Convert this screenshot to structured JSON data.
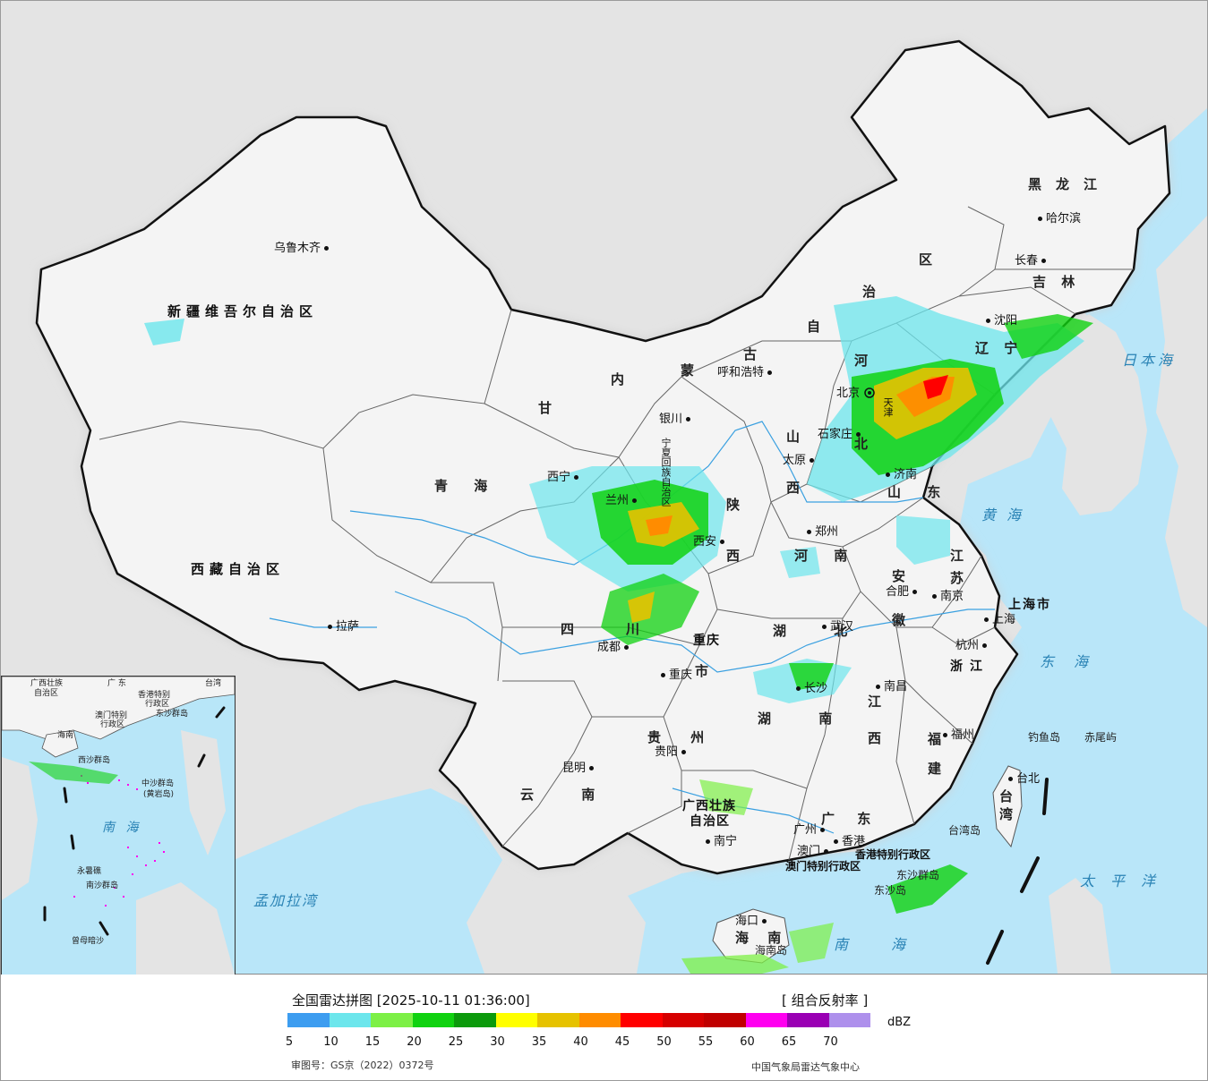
{
  "map": {
    "provinces": [
      {
        "id": "xinjiang",
        "label": "新疆维吾尔自治区",
        "cls": "prov-tight"
      },
      {
        "id": "xizang",
        "label": "西藏自治区",
        "cls": "prov-tight"
      },
      {
        "id": "qinghai",
        "label": "青 海",
        "cls": "prov"
      },
      {
        "id": "gansu",
        "label": "甘",
        "cls": "prov"
      },
      {
        "id": "neimenggu-nei",
        "label": "内",
        "cls": "prov"
      },
      {
        "id": "neimenggu-meng",
        "label": "蒙",
        "cls": "prov"
      },
      {
        "id": "neimenggu-gu",
        "label": "古",
        "cls": "prov"
      },
      {
        "id": "neimenggu-zi",
        "label": "自",
        "cls": "prov"
      },
      {
        "id": "neimenggu-zhi",
        "label": "治",
        "cls": "prov"
      },
      {
        "id": "neimenggu-qu",
        "label": "区",
        "cls": "prov"
      },
      {
        "id": "heilongjiang",
        "label": "黑龙江",
        "cls": "prov"
      },
      {
        "id": "jilin",
        "label": "吉 林",
        "cls": "prov"
      },
      {
        "id": "liaoning",
        "label": "辽 宁",
        "cls": "prov"
      },
      {
        "id": "hebei-he",
        "label": "河",
        "cls": "prov"
      },
      {
        "id": "hebei-bei",
        "label": "北",
        "cls": "prov"
      },
      {
        "id": "shanxi-shan",
        "label": "山",
        "cls": "prov"
      },
      {
        "id": "shanxi-xi",
        "label": "西",
        "cls": "prov"
      },
      {
        "id": "shaanxi-shan",
        "label": "陕",
        "cls": "prov"
      },
      {
        "id": "shaanxi-xi",
        "label": "西",
        "cls": "prov"
      },
      {
        "id": "shandong",
        "label": "山 东",
        "cls": "prov"
      },
      {
        "id": "henan",
        "label": "河 南",
        "cls": "prov"
      },
      {
        "id": "jiangsu-jiang",
        "label": "江",
        "cls": "prov"
      },
      {
        "id": "jiangsu-su",
        "label": "苏",
        "cls": "prov"
      },
      {
        "id": "anhui-an",
        "label": "安",
        "cls": "prov"
      },
      {
        "id": "anhui-hui",
        "label": "徽",
        "cls": "prov"
      },
      {
        "id": "shanghai",
        "label": "上海市",
        "cls": "prov-tight"
      },
      {
        "id": "zhejiang",
        "label": "浙江",
        "cls": "prov-tight"
      },
      {
        "id": "sichuan-si",
        "label": "四",
        "cls": "prov"
      },
      {
        "id": "sichuan-chuan",
        "label": "川",
        "cls": "prov"
      },
      {
        "id": "chongqing-a",
        "label": "重庆",
        "cls": "prov-tight"
      },
      {
        "id": "chongqing-b",
        "label": "市",
        "cls": "prov"
      },
      {
        "id": "hubei",
        "label": "湖 北",
        "cls": "prov"
      },
      {
        "id": "hunan",
        "label": "湖 南",
        "cls": "prov"
      },
      {
        "id": "jiangxi-jiang",
        "label": "江",
        "cls": "prov"
      },
      {
        "id": "jiangxi-xi",
        "label": "西",
        "cls": "prov"
      },
      {
        "id": "fujian-fu",
        "label": "福",
        "cls": "prov"
      },
      {
        "id": "fujian-jian",
        "label": "建",
        "cls": "prov"
      },
      {
        "id": "guizhou",
        "label": "贵 州",
        "cls": "prov"
      },
      {
        "id": "yunnan",
        "label": "云 南",
        "cls": "prov"
      },
      {
        "id": "guangxi-a",
        "label": "广西壮族",
        "cls": "prov-tight"
      },
      {
        "id": "guangxi-b",
        "label": "自治区",
        "cls": "prov-tight"
      },
      {
        "id": "guangdong",
        "label": "广 东",
        "cls": "prov"
      },
      {
        "id": "hainan",
        "label": "海 南",
        "cls": "prov"
      },
      {
        "id": "taiwan-a",
        "label": "台",
        "cls": "prov"
      },
      {
        "id": "taiwan-b",
        "label": "湾",
        "cls": "prov"
      },
      {
        "id": "ningxia",
        "label": "宁夏回族自治区",
        "cls": "prov-tight"
      },
      {
        "id": "tianjin",
        "label": "天津",
        "cls": "prov-tight"
      },
      {
        "id": "hk-sar",
        "label": "香港特别行政区",
        "cls": "prov-tight"
      },
      {
        "id": "macao-sar",
        "label": "澳门特别行政区",
        "cls": "prov-tight"
      }
    ],
    "cities": [
      {
        "id": "urumqi",
        "label": "乌鲁木齐",
        "side": "r"
      },
      {
        "id": "lhasa",
        "label": "拉萨",
        "side": "l"
      },
      {
        "id": "xining",
        "label": "西宁",
        "side": "r"
      },
      {
        "id": "lanzhou",
        "label": "兰州",
        "side": "r"
      },
      {
        "id": "yinchuan",
        "label": "银川",
        "side": "r"
      },
      {
        "id": "hohhot",
        "label": "呼和浩特",
        "side": "r"
      },
      {
        "id": "beijing",
        "label": "北京",
        "side": "r"
      },
      {
        "id": "shijiazhuang",
        "label": "石家庄",
        "side": "r"
      },
      {
        "id": "taiyuan",
        "label": "太原",
        "side": "r"
      },
      {
        "id": "xian",
        "label": "西安",
        "side": "r"
      },
      {
        "id": "zhengzhou",
        "label": "郑州",
        "side": "l"
      },
      {
        "id": "jinan",
        "label": "济南",
        "side": "l"
      },
      {
        "id": "shenyang",
        "label": "沈阳",
        "side": "l"
      },
      {
        "id": "changchun",
        "label": "长春",
        "side": "r"
      },
      {
        "id": "harbin",
        "label": "哈尔滨",
        "side": "l"
      },
      {
        "id": "hefei",
        "label": "合肥",
        "side": "r"
      },
      {
        "id": "nanjing",
        "label": "南京",
        "side": "l"
      },
      {
        "id": "shanghai-c",
        "label": "上海",
        "side": "l"
      },
      {
        "id": "hangzhou",
        "label": "杭州",
        "side": "r"
      },
      {
        "id": "wuhan",
        "label": "武汉",
        "side": "l"
      },
      {
        "id": "chengdu",
        "label": "成都",
        "side": "r"
      },
      {
        "id": "chongqing-c",
        "label": "重庆",
        "side": "l"
      },
      {
        "id": "changsha",
        "label": "长沙",
        "side": "l"
      },
      {
        "id": "nanchang",
        "label": "南昌",
        "side": "l"
      },
      {
        "id": "fuzhou",
        "label": "福州",
        "side": "l"
      },
      {
        "id": "guiyang",
        "label": "贵阳",
        "side": "r"
      },
      {
        "id": "kunming",
        "label": "昆明",
        "side": "r"
      },
      {
        "id": "nanning",
        "label": "南宁",
        "side": "l"
      },
      {
        "id": "guangzhou",
        "label": "广州",
        "side": "r"
      },
      {
        "id": "hongkong",
        "label": "香港",
        "side": "l"
      },
      {
        "id": "macao",
        "label": "澳门",
        "side": "r"
      },
      {
        "id": "haikou",
        "label": "海口",
        "side": "r"
      },
      {
        "id": "taipei",
        "label": "台北",
        "side": "l"
      }
    ],
    "seas": [
      {
        "id": "japan-sea",
        "label": "日本海"
      },
      {
        "id": "yellow-sea",
        "label": "黄海"
      },
      {
        "id": "east-sea",
        "label": "东海"
      },
      {
        "id": "pacific",
        "label": "太平洋"
      },
      {
        "id": "bengal",
        "label": "孟加拉湾"
      },
      {
        "id": "south-sea",
        "label": "南海"
      }
    ],
    "islands": [
      {
        "id": "diaoyu",
        "label": "钓鱼岛"
      },
      {
        "id": "chiwei",
        "label": "赤尾屿"
      },
      {
        "id": "taiwan-island",
        "label": "台湾岛"
      },
      {
        "id": "dongsha-qundao",
        "label": "东沙群岛"
      },
      {
        "id": "dongsha-dao",
        "label": "东沙岛"
      },
      {
        "id": "hainan-island",
        "label": "海南岛"
      }
    ],
    "inset": {
      "labels": [
        {
          "id": "in-gx",
          "label": "广西壮族"
        },
        {
          "id": "in-gx2",
          "label": "自治区"
        },
        {
          "id": "in-gd",
          "label": "广 东"
        },
        {
          "id": "in-tw",
          "label": "台湾"
        },
        {
          "id": "in-hk",
          "label": "香港特别"
        },
        {
          "id": "in-hk2",
          "label": "行政区"
        },
        {
          "id": "in-mo",
          "label": "澳门特别"
        },
        {
          "id": "in-mo2",
          "label": "行政区"
        },
        {
          "id": "in-ds",
          "label": "东沙群岛"
        },
        {
          "id": "in-hn",
          "label": "海南"
        },
        {
          "id": "in-xs",
          "label": "西沙群岛"
        },
        {
          "id": "in-zs",
          "label": "中沙群岛"
        },
        {
          "id": "in-hyd",
          "label": "(黄岩岛)"
        },
        {
          "id": "in-nh",
          "label": "南 海"
        },
        {
          "id": "in-nansha",
          "label": "南沙群岛"
        },
        {
          "id": "in-yongshu",
          "label": "永暑礁"
        },
        {
          "id": "in-zengmu",
          "label": "曾母暗沙"
        }
      ]
    }
  },
  "legend": {
    "title": "全国雷达拼图 [2025-10-11 01:36:00]",
    "product": "[ 组合反射率 ]",
    "unit": "dBZ",
    "colors": [
      "#3d9df0",
      "#6ce6ec",
      "#7df046",
      "#10d210",
      "#0c9a0c",
      "#ffff00",
      "#e6c200",
      "#ff8c00",
      "#ff0000",
      "#d60000",
      "#c00000",
      "#ff00f0",
      "#9a00b4",
      "#ae90ec"
    ],
    "ticks": [
      "5",
      "10",
      "15",
      "20",
      "25",
      "30",
      "35",
      "40",
      "45",
      "50",
      "55",
      "60",
      "65",
      "70"
    ],
    "approval": "审图号：GS京（2022）0372号",
    "org": "中国气象局雷达气象中心"
  }
}
